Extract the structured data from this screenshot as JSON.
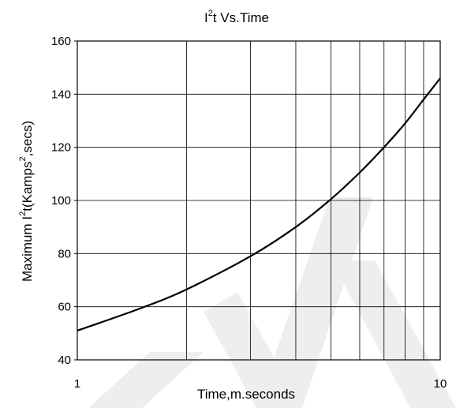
{
  "chart_data": {
    "type": "line",
    "title": {
      "base": "I",
      "sup": "2",
      "rest": "t  Vs.Time"
    },
    "xlabel": "Time,m.seconds",
    "ylabel": {
      "pre": "Maximum I",
      "sup1": "2",
      "mid": "t(Kamps",
      "sup2": "2",
      "post": ",secs)"
    },
    "xscale": "log",
    "xlim": [
      1,
      10
    ],
    "ylim": [
      40,
      160
    ],
    "xticks": [
      1,
      10
    ],
    "xtick_labels": [
      "1",
      "10"
    ],
    "x_minor_gridlines": [
      2,
      3,
      4,
      5,
      6,
      7,
      8,
      9
    ],
    "yticks": [
      40,
      60,
      80,
      100,
      120,
      140,
      160
    ],
    "ytick_labels": [
      "40",
      "60",
      "80",
      "100",
      "120",
      "140",
      "160"
    ],
    "grid": true,
    "series": [
      {
        "color": "#000000",
        "x": [
          1,
          1.5,
          2,
          3,
          4,
          5,
          6,
          7,
          8,
          9,
          10
        ],
        "y": [
          51,
          59.5,
          66.5,
          79,
          90,
          100.5,
          110.5,
          120,
          129,
          138,
          146
        ]
      }
    ]
  },
  "watermark": {
    "color": "#eeeeee"
  }
}
